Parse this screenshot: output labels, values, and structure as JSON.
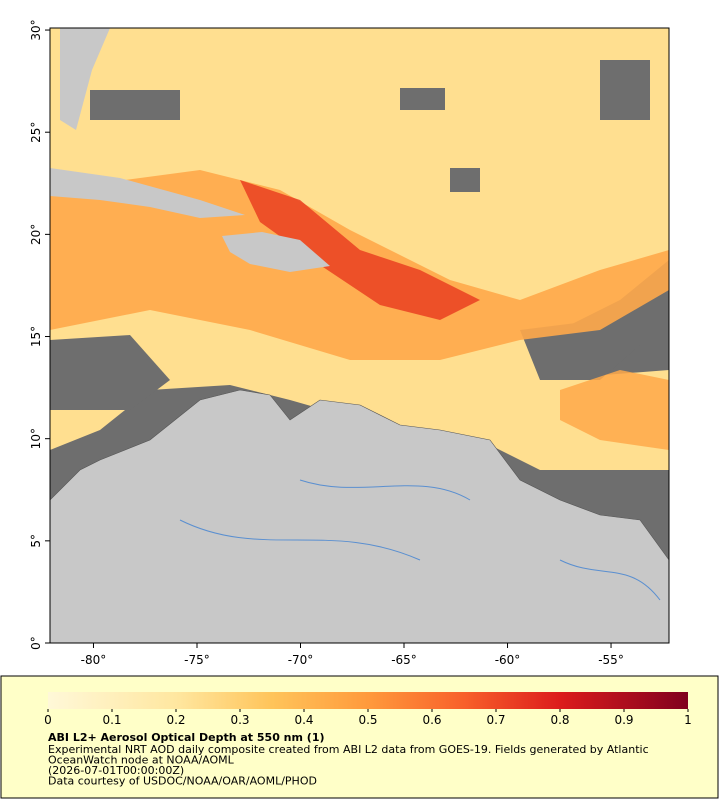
{
  "map": {
    "lonlim": [
      -82.1,
      -52.2
    ],
    "latlim": [
      0,
      30.1
    ],
    "xticks": [
      {
        "value": -80,
        "label": "-80°"
      },
      {
        "value": -75,
        "label": "-75°"
      },
      {
        "value": -70,
        "label": "-70°"
      },
      {
        "value": -65,
        "label": "-65°"
      },
      {
        "value": -60,
        "label": "-60°"
      },
      {
        "value": -55,
        "label": "-55°"
      }
    ],
    "yticks": [
      {
        "value": 0,
        "label": "0°"
      },
      {
        "value": 5,
        "label": "5°"
      },
      {
        "value": 10,
        "label": "10°"
      },
      {
        "value": 15,
        "label": "15°"
      },
      {
        "value": 20,
        "label": "20°"
      },
      {
        "value": 25,
        "label": "25°"
      },
      {
        "value": 30,
        "label": "30°"
      }
    ]
  },
  "colorbar": {
    "lim": [
      0,
      1
    ],
    "ticks": [
      0,
      0.1,
      0.2,
      0.3,
      0.4,
      0.5,
      0.6,
      0.7,
      0.8,
      0.9,
      1
    ]
  },
  "caption": {
    "title": "ABI L2+ Aerosol Optical Depth at 550 nm (1)",
    "lines": [
      "Experimental NRT AOD daily composite created from ABI L2 data from GOES-19. Fields generated by Atlantic",
      "OceanWatch node at NOAA/AOML",
      "(2026-07-01T00:00:00Z)",
      "Data courtesy of USDOC/NOAA/OAR/AOML/PHOD"
    ]
  }
}
